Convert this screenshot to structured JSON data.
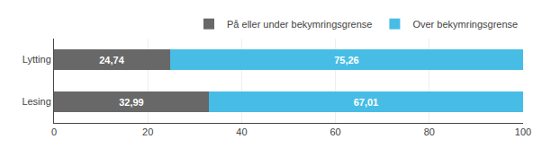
{
  "chart_data": {
    "type": "bar",
    "orientation": "horizontal",
    "stacked": true,
    "categories": [
      "Lytting",
      "Lesing"
    ],
    "series": [
      {
        "name": "På eller under bekymringsgrense",
        "color": "#686868",
        "values": [
          24.74,
          32.99
        ],
        "value_labels": [
          "24,74",
          "32,99"
        ]
      },
      {
        "name": "Over bekymringsgrense",
        "color": "#47bde6",
        "values": [
          75.26,
          67.01
        ],
        "value_labels": [
          "75,26",
          "67,01"
        ]
      }
    ],
    "xlim": [
      0,
      100
    ],
    "xticks": [
      0,
      20,
      40,
      60,
      80,
      100
    ],
    "grid": true,
    "legend": "upper right",
    "data_labels": true
  }
}
